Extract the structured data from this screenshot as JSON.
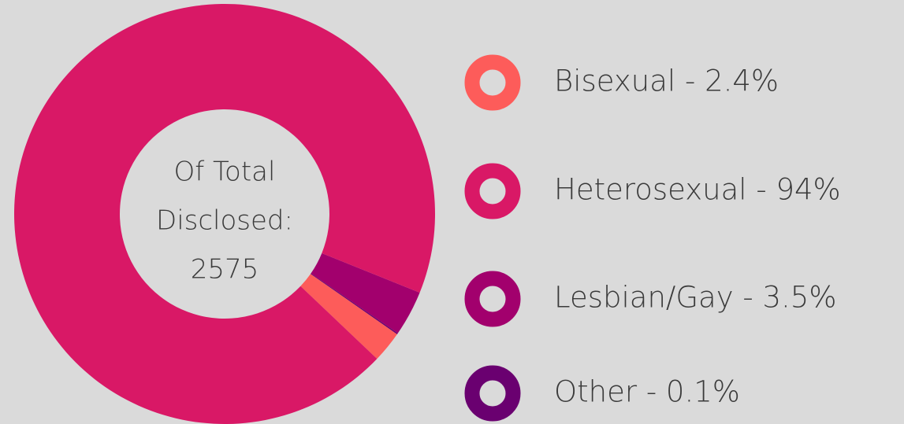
{
  "chart_data": {
    "type": "donut",
    "center_label": [
      "Of Total",
      "Disclosed:",
      "2575"
    ],
    "categories": [
      "Bisexual - 2.4%",
      "Heterosexual - 94%",
      "Lesbian/Gay - 3.5%",
      "Other - 0.1%"
    ],
    "values": [
      2.4,
      94,
      3.5,
      0.1
    ],
    "colors": [
      "#fd5c5a",
      "#d91866",
      "#a2006d",
      "#6a0070"
    ],
    "legend": "right"
  }
}
